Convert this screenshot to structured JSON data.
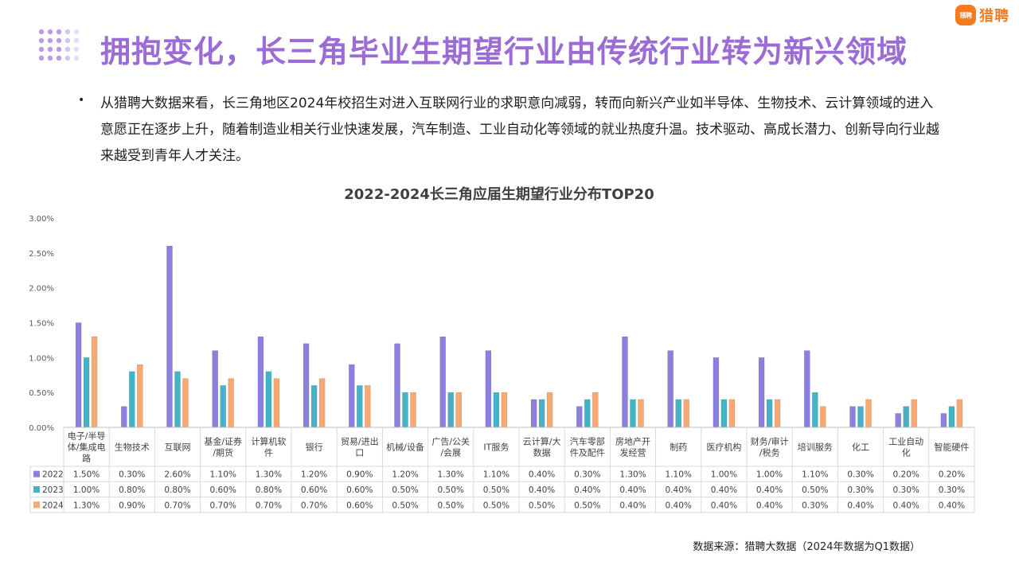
{
  "brand": {
    "logo_mark_text": "猎聘",
    "logo_text": "猎聘",
    "accent_color": "#f47b20"
  },
  "title": "拥抱变化，长三角毕业生期望行业由传统行业转为新兴领域",
  "bullet": "从猎聘大数据来看，长三角地区2024年校招生对进入互联网行业的求职意向减弱，转而向新兴产业如半导体、生物技术、云计算领域的进入意愿正在逐步上升，随着制造业相关行业快速发展，汽车制造、工业自动化等领域的就业热度升温。技术驱动、高成长潜力、创新导向行业越来越受到青年人才关注。",
  "source": "数据来源：猎聘大数据（2024年数据为Q1数据）",
  "chart_data": {
    "type": "bar",
    "title": "2022-2024长三角应届生期望行业分布TOP20",
    "categories": [
      [
        "电子/半导",
        "体/集成电",
        "路"
      ],
      [
        "生物技术"
      ],
      [
        "互联网"
      ],
      [
        "基金/证券",
        "/期货"
      ],
      [
        "计算机软",
        "件"
      ],
      [
        "银行"
      ],
      [
        "贸易/进出",
        "口"
      ],
      [
        "机械/设备"
      ],
      [
        "广告/公关",
        "/会展"
      ],
      [
        "IT服务"
      ],
      [
        "云计算/大",
        "数据"
      ],
      [
        "汽车零部",
        "件及配件"
      ],
      [
        "房地产开",
        "发经营"
      ],
      [
        "制药"
      ],
      [
        "医疗机构"
      ],
      [
        "财务/审计",
        "/税务"
      ],
      [
        "培训服务"
      ],
      [
        "化工"
      ],
      [
        "工业自动",
        "化"
      ],
      [
        "智能硬件"
      ]
    ],
    "series": [
      {
        "name": "2022",
        "color": "#8b7fe0",
        "values": [
          1.5,
          0.3,
          2.6,
          1.1,
          1.3,
          1.2,
          0.9,
          1.2,
          1.3,
          1.1,
          0.4,
          0.3,
          1.3,
          1.1,
          1.0,
          1.0,
          1.1,
          0.3,
          0.2,
          0.2
        ],
        "labels": [
          "1.50%",
          "0.30%",
          "2.60%",
          "1.10%",
          "1.30%",
          "1.20%",
          "0.90%",
          "1.20%",
          "1.30%",
          "1.10%",
          "0.40%",
          "0.30%",
          "1.30%",
          "1.10%",
          "1.00%",
          "1.00%",
          "1.10%",
          "0.30%",
          "0.20%",
          "0.20%"
        ]
      },
      {
        "name": "2023",
        "color": "#45b3c6",
        "values": [
          1.0,
          0.8,
          0.8,
          0.6,
          0.8,
          0.6,
          0.6,
          0.5,
          0.5,
          0.5,
          0.4,
          0.4,
          0.4,
          0.4,
          0.4,
          0.4,
          0.5,
          0.3,
          0.3,
          0.3
        ],
        "labels": [
          "1.00%",
          "0.80%",
          "0.80%",
          "0.60%",
          "0.80%",
          "0.60%",
          "0.60%",
          "0.50%",
          "0.50%",
          "0.50%",
          "0.40%",
          "0.40%",
          "0.40%",
          "0.40%",
          "0.40%",
          "0.40%",
          "0.50%",
          "0.30%",
          "0.30%",
          "0.30%"
        ]
      },
      {
        "name": "2024",
        "color": "#f8a870",
        "values": [
          1.3,
          0.9,
          0.7,
          0.7,
          0.7,
          0.7,
          0.6,
          0.5,
          0.5,
          0.5,
          0.5,
          0.5,
          0.4,
          0.4,
          0.4,
          0.4,
          0.3,
          0.4,
          0.4,
          0.4
        ],
        "labels": [
          "1.30%",
          "0.90%",
          "0.70%",
          "0.70%",
          "0.70%",
          "0.70%",
          "0.60%",
          "0.50%",
          "0.50%",
          "0.50%",
          "0.50%",
          "0.50%",
          "0.40%",
          "0.40%",
          "0.40%",
          "0.40%",
          "0.30%",
          "0.40%",
          "0.40%",
          "0.40%"
        ]
      }
    ],
    "y_ticks": [
      "0.00%",
      "0.50%",
      "1.00%",
      "1.50%",
      "2.00%",
      "2.50%",
      "3.00%"
    ],
    "ylim": [
      0,
      3.0
    ],
    "legend": "data table with series keys",
    "grid": false
  }
}
